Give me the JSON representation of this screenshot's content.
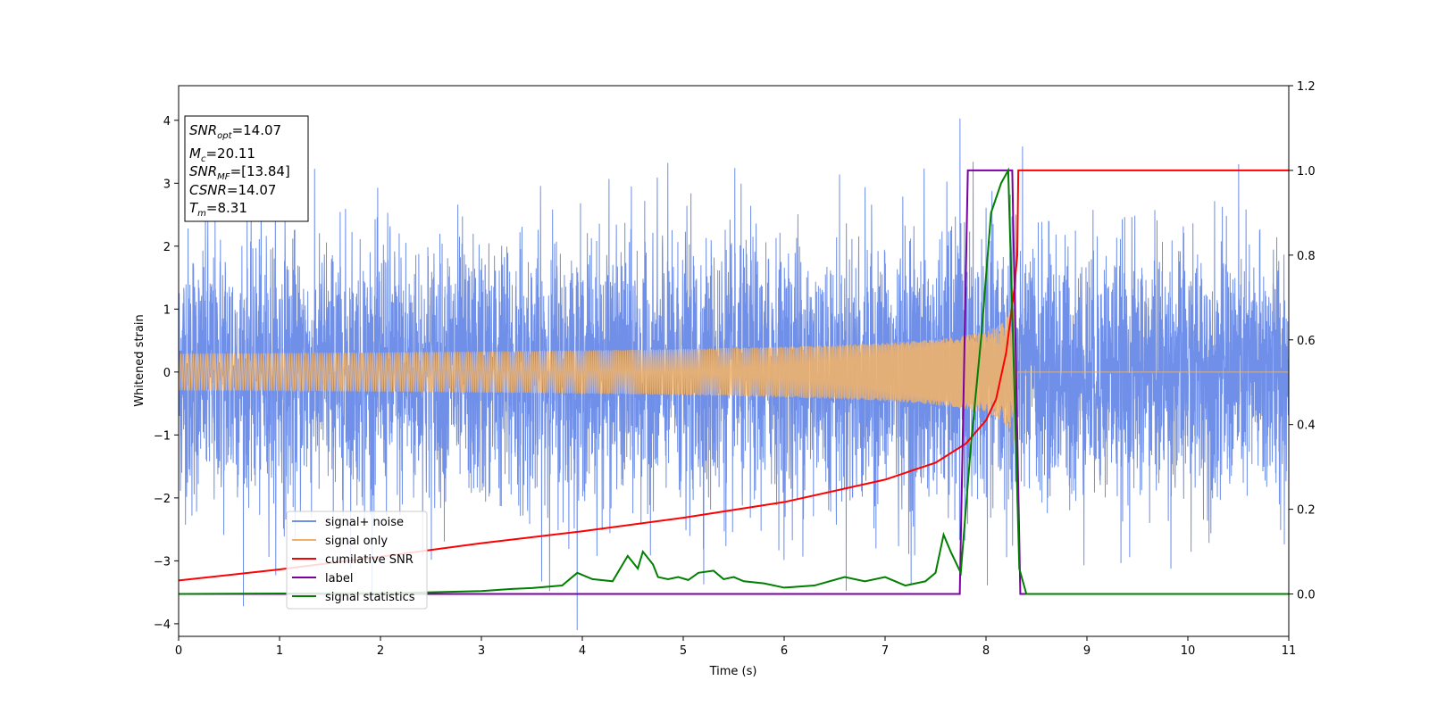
{
  "chart_data": {
    "type": "line",
    "xlabel": "Time (s)",
    "ylabel": "Whitened strain",
    "xlim": [
      0,
      11
    ],
    "ylim_left": [
      -4.2,
      4.55
    ],
    "ylim_right": [
      -0.1,
      1.2
    ],
    "x_ticks": [
      "0",
      "1",
      "2",
      "3",
      "4",
      "5",
      "6",
      "7",
      "8",
      "9",
      "10",
      "11"
    ],
    "y_left_ticks": [
      "−4",
      "−3",
      "−2",
      "−1",
      "0",
      "1",
      "2",
      "3",
      "4"
    ],
    "y_right_ticks": [
      "0.0",
      "0.2",
      "0.4",
      "0.6",
      "0.8",
      "1.0",
      "1.2"
    ],
    "grid": false,
    "legend_position": "lower-left",
    "info_box": {
      "snr_opt": {
        "sym": "SNR",
        "sub": "opt",
        "value": "=14.07"
      },
      "mc": {
        "sym": "M",
        "sub": "c",
        "value": "=20.11"
      },
      "snr_mf": {
        "sym": "SNR",
        "sub": "MF",
        "value": "=[13.84]"
      },
      "csnr": {
        "sym": "CSNR",
        "value": "=14.07"
      },
      "tm": {
        "sym": "T",
        "sub": "m",
        "value": "=8.31"
      }
    },
    "series": [
      {
        "name": "signal+ noise",
        "axis": "left",
        "color": "#6f8fe8",
        "kind": "noise",
        "envelope": {
          "typical_amplitude": 1.0,
          "peak_max": 4.1,
          "peak_min": -3.8
        }
      },
      {
        "name": "signal only",
        "axis": "left",
        "color": "#f0b26b",
        "kind": "chirp",
        "merger_time": 8.31,
        "amplitude_at_merger": 1.5,
        "amplitude_at_start": 0.05
      },
      {
        "name": "cumilative SNR",
        "axis": "right",
        "color": "#ff0000",
        "x": [
          0,
          1,
          2,
          3,
          4,
          5,
          6,
          7,
          7.5,
          7.8,
          8.0,
          8.1,
          8.2,
          8.28,
          8.31,
          8.32,
          11
        ],
        "y": [
          0.032,
          0.058,
          0.088,
          0.12,
          0.148,
          0.18,
          0.217,
          0.27,
          0.31,
          0.355,
          0.41,
          0.46,
          0.57,
          0.72,
          0.8,
          1.0,
          1.0
        ]
      },
      {
        "name": "label",
        "axis": "right",
        "color": "#7b00a0",
        "x": [
          0,
          7.74,
          7.82,
          8.26,
          8.34,
          11
        ],
        "y": [
          0,
          0,
          1,
          1,
          0,
          0
        ]
      },
      {
        "name": "signal statistics",
        "axis": "right",
        "color": "#007f00",
        "x": [
          0,
          1,
          2,
          2.5,
          3,
          3.3,
          3.5,
          3.8,
          3.95,
          4.1,
          4.3,
          4.45,
          4.55,
          4.6,
          4.7,
          4.75,
          4.85,
          4.95,
          5.05,
          5.15,
          5.3,
          5.4,
          5.5,
          5.6,
          5.8,
          6.0,
          6.3,
          6.6,
          6.8,
          7.0,
          7.2,
          7.4,
          7.5,
          7.58,
          7.65,
          7.75,
          7.85,
          7.95,
          8.05,
          8.15,
          8.22,
          8.28,
          8.33,
          8.4,
          9,
          11
        ],
        "y": [
          0,
          0.001,
          0.002,
          0.004,
          0.007,
          0.012,
          0.014,
          0.02,
          0.05,
          0.035,
          0.03,
          0.09,
          0.06,
          0.1,
          0.07,
          0.04,
          0.035,
          0.04,
          0.033,
          0.05,
          0.055,
          0.035,
          0.04,
          0.03,
          0.025,
          0.015,
          0.02,
          0.04,
          0.03,
          0.04,
          0.02,
          0.03,
          0.05,
          0.14,
          0.1,
          0.05,
          0.35,
          0.6,
          0.9,
          0.97,
          1.0,
          0.5,
          0.06,
          0.0,
          0.0,
          0.0
        ]
      }
    ]
  }
}
